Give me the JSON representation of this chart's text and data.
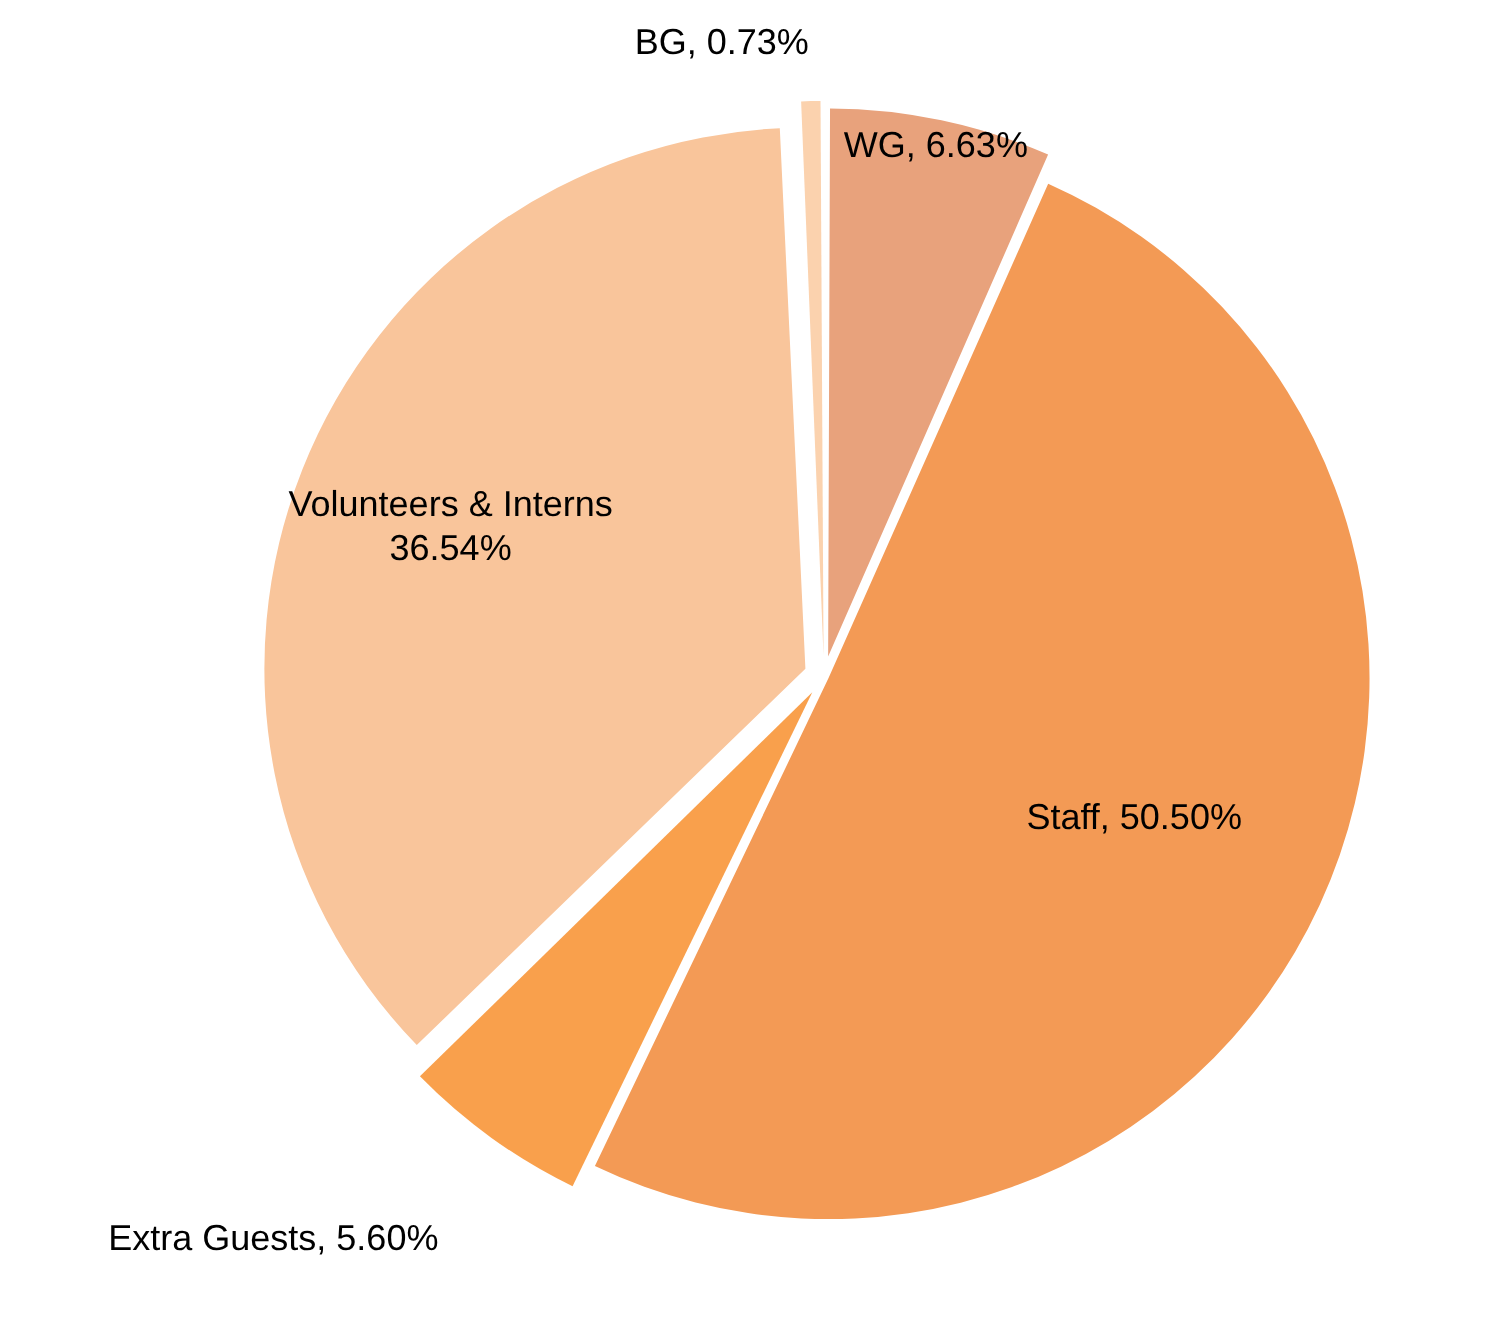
{
  "chart_data": {
    "type": "pie",
    "categories": [
      "WG",
      "Staff",
      "Extra Guests",
      "Volunteers & Interns",
      "BG"
    ],
    "values": [
      6.63,
      50.5,
      5.6,
      36.54,
      0.73
    ],
    "value_labels": [
      "6.63%",
      "50.50%",
      "5.60%",
      "36.54%",
      "0.73%"
    ],
    "colors": [
      "#e8a27c",
      "#f39a55",
      "#f9a04c",
      "#f9c59b",
      "#fbd2ae"
    ],
    "legend": false
  }
}
